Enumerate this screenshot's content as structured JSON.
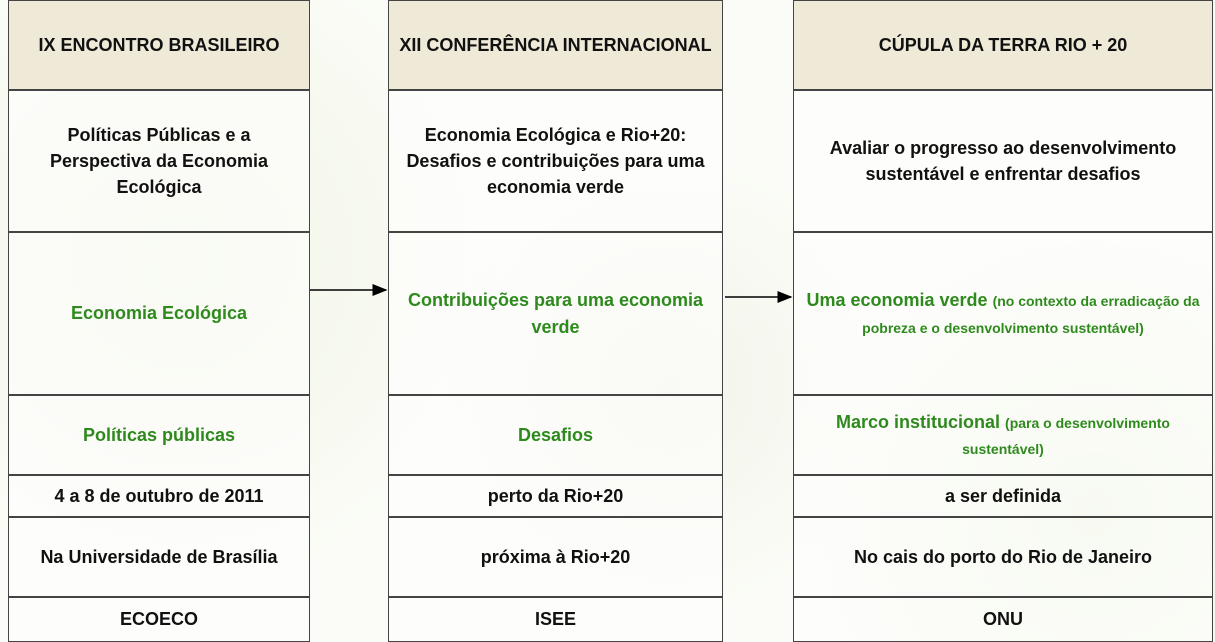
{
  "columns": [
    {
      "header": "IX ENCONTRO BRASILEIRO",
      "cells": [
        "Políticas Públicas e a Perspectiva da Economia Ecológica",
        "Economia Ecológica",
        "Políticas públicas",
        "4 a 8 de outubro de 2011",
        "Na Universidade de Brasília",
        "ECOECO"
      ]
    },
    {
      "header": "XII CONFERÊNCIA INTERNACIONAL",
      "cells": [
        "Economia Ecológica e Rio+20: Desafios e contribuições para uma economia verde",
        "Contribuições para uma economia verde",
        "Desafios",
        "perto da Rio+20",
        "próxima à Rio+20",
        "ISEE"
      ]
    },
    {
      "header": "CÚPULA DA TERRA RIO + 20",
      "cells": [
        "Avaliar o progresso ao desenvolvimento sustentável e enfrentar desafios",
        {
          "main": "Uma economia verde",
          "detail": "(no contexto da erradicação da pobreza e o desenvolvimento sustentável)"
        },
        {
          "main": "Marco institucional",
          "detail": "(para o desenvolvimento sustentável)"
        },
        "a ser definida",
        "No cais do porto do Rio de Janeiro",
        "ONU"
      ]
    }
  ]
}
